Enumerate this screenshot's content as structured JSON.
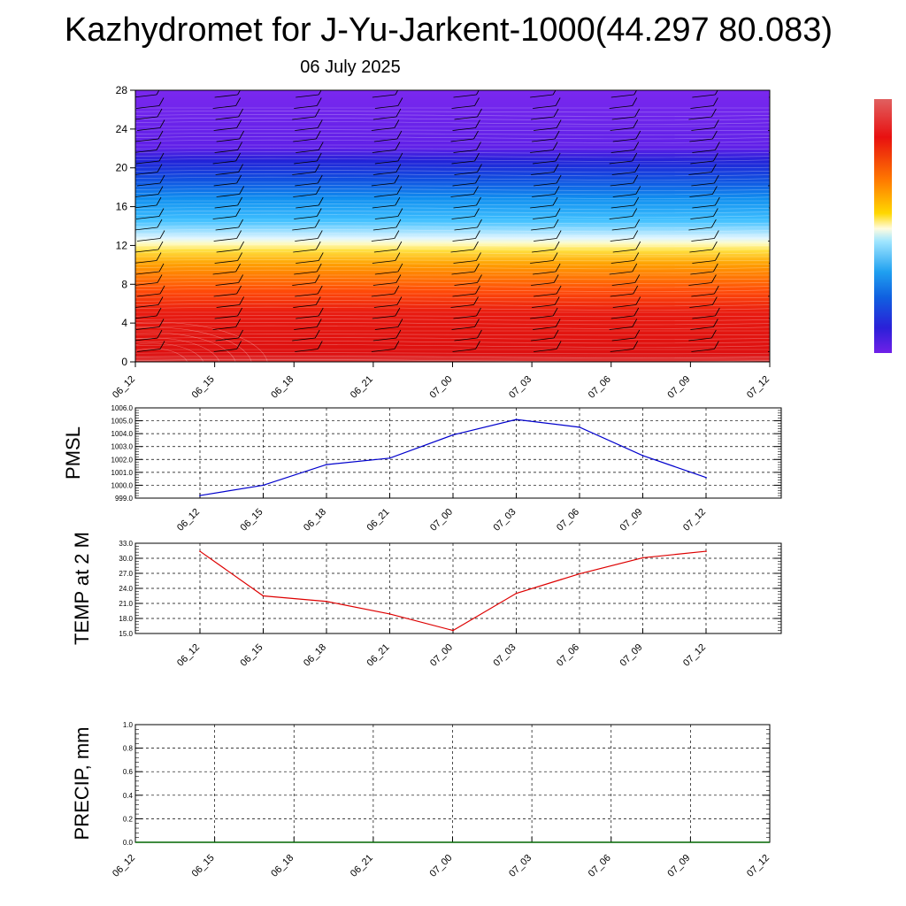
{
  "page": {
    "title": "Kazhydromet for J-Yu-Jarkent-1000(44.297 80.083)",
    "subtitle": "06 July 2025"
  },
  "chart_data": [
    {
      "type": "heatmap",
      "name": "contour-panel",
      "x_ticks": [
        "06_12",
        "06_15",
        "06_18",
        "06_21",
        "07_00",
        "07_03",
        "07_06",
        "07_09",
        "07_12"
      ],
      "y_ticks": [
        0,
        4,
        8,
        12,
        16,
        20,
        24,
        28
      ],
      "ylim": [
        0,
        28
      ],
      "colorbar": {
        "colors": [
          "#e06060",
          "#e01010",
          "#ff6600",
          "#ffcc00",
          "#fffbb0",
          "#b0e8ff",
          "#20a8f0",
          "#1060e0",
          "#2020d8",
          "#7020e8"
        ]
      },
      "grid": false
    },
    {
      "type": "line",
      "name": "pmsl-panel",
      "ylabel": "PMSL",
      "x": [
        "06_12",
        "06_15",
        "06_18",
        "06_21",
        "07_00",
        "07_03",
        "07_06",
        "07_09",
        "07_12"
      ],
      "values": [
        999.2,
        1000.0,
        1001.6,
        1002.1,
        1003.9,
        1005.1,
        1004.5,
        1002.3,
        1000.6
      ],
      "ylim": [
        999.0,
        1006.0
      ],
      "y_ticks": [
        "999.0",
        "1000.0",
        "1001.0",
        "1002.0",
        "1003.0",
        "1004.0",
        "1005.0",
        "1006.0"
      ],
      "color": "#0000cc",
      "grid": true
    },
    {
      "type": "line",
      "name": "temp-panel",
      "ylabel": "TEMP at 2 M",
      "x": [
        "06_12",
        "06_15",
        "06_18",
        "06_21",
        "07_00",
        "07_03",
        "07_06",
        "07_09",
        "07_12"
      ],
      "values": [
        31.4,
        22.5,
        21.4,
        18.9,
        15.6,
        23.0,
        26.9,
        30.1,
        31.4
      ],
      "ylim": [
        15.0,
        33.0
      ],
      "y_ticks": [
        "15.0",
        "18.0",
        "21.0",
        "24.0",
        "27.0",
        "30.0",
        "33.0"
      ],
      "color": "#dd0000",
      "grid": true
    },
    {
      "type": "bar",
      "name": "precip-panel",
      "ylabel": "PRECIP, mm",
      "x_ticks": [
        "06_12",
        "06_15",
        "06_18",
        "06_21",
        "07_00",
        "07_03",
        "07_06",
        "07_09",
        "07_12"
      ],
      "values": [
        0,
        0,
        0,
        0,
        0,
        0,
        0,
        0,
        0
      ],
      "ylim": [
        0.0,
        1.0
      ],
      "y_ticks": [
        "0.0",
        "0.2",
        "0.4",
        "0.6",
        "0.8",
        "1.0"
      ],
      "color": "#006600",
      "grid": true
    }
  ]
}
